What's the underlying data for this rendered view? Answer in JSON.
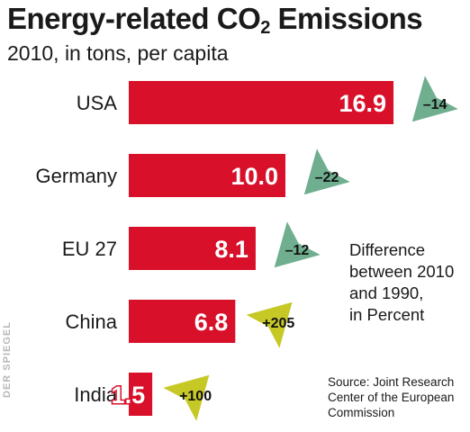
{
  "chart_data": {
    "type": "bar",
    "orientation": "horizontal",
    "title_main": "Energy-related CO",
    "title_sub": "2",
    "title_end": " Emissions",
    "subtitle": "2010, in tons, per capita",
    "categories": [
      "USA",
      "Germany",
      "EU 27",
      "China",
      "India"
    ],
    "values": [
      16.9,
      10.0,
      8.1,
      6.8,
      1.5
    ],
    "value_labels": [
      "16.9",
      "10.0",
      "8.1",
      "6.8",
      "1.5"
    ],
    "change_1990_2010_percent": [
      -14,
      -22,
      -12,
      205,
      100
    ],
    "change_labels": [
      "–14",
      "–22",
      "–12",
      "+205",
      "+100"
    ],
    "note": "Difference\nbetween 2010\nand 1990,\nin Percent",
    "source": "Source: Joint Research\nCenter of the European\nCommission",
    "credit": "DER SPIEGEL",
    "colors": {
      "bar": "#d8102a",
      "decrease_arrow": "#6fae8f",
      "increase_arrow": "#c6c826"
    }
  }
}
